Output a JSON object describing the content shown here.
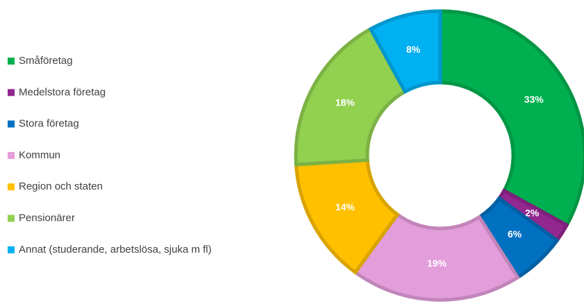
{
  "chart_data": {
    "type": "donut",
    "categories": [
      "Småföretag",
      "Medelstora företag",
      "Stora företag",
      "Kommun",
      "Region och staten",
      "Pensionärer",
      "Annat (studerande, arbetslösa, sjuka m fl)"
    ],
    "values": [
      33,
      2,
      6,
      19,
      14,
      18,
      8
    ],
    "value_labels": [
      "33%",
      "2%",
      "6%",
      "19%",
      "14%",
      "18%",
      "8%"
    ],
    "colors": [
      "#00b050",
      "#92278f",
      "#0070c0",
      "#e39ddb",
      "#ffc000",
      "#92d050",
      "#00b0f0"
    ],
    "legend": "left"
  }
}
